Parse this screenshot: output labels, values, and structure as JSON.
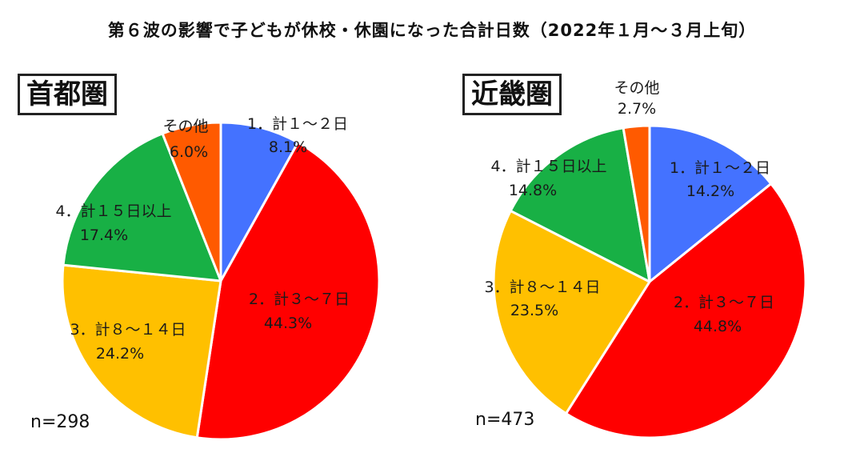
{
  "title": "第６波の影響で子どもが休校・休園になった合計日数（2022年１月〜３月上旬）",
  "colors": {
    "blue": "#4472ff",
    "red": "#ff0000",
    "yellow": "#ffc000",
    "green": "#18b045",
    "orange": "#ff5a00"
  },
  "chart_data": [
    {
      "type": "pie",
      "region": "首都圏",
      "n": "n=298",
      "slices": [
        {
          "label": "1．計１〜２日",
          "value": 8.1,
          "value_label": "8.1%",
          "color": "#4472ff"
        },
        {
          "label": "2．計３〜７日",
          "value": 44.3,
          "value_label": "44.3%",
          "color": "#ff0000"
        },
        {
          "label": "3．計８〜１４日",
          "value": 24.2,
          "value_label": "24.2%",
          "color": "#ffc000"
        },
        {
          "label": "4．計１５日以上",
          "value": 17.4,
          "value_label": "17.4%",
          "color": "#18b045"
        },
        {
          "label": "その他",
          "value": 6.0,
          "value_label": "6.0%",
          "color": "#ff5a00"
        }
      ]
    },
    {
      "type": "pie",
      "region": "近畿圏",
      "n": "n=473",
      "slices": [
        {
          "label": "1．計１〜２日",
          "value": 14.2,
          "value_label": "14.2%",
          "color": "#4472ff"
        },
        {
          "label": "2．計３〜７日",
          "value": 44.8,
          "value_label": "44.8%",
          "color": "#ff0000"
        },
        {
          "label": "3．計８〜１４日",
          "value": 23.5,
          "value_label": "23.5%",
          "color": "#ffc000"
        },
        {
          "label": "4．計１５日以上",
          "value": 14.8,
          "value_label": "14.8%",
          "color": "#18b045"
        },
        {
          "label": "その他",
          "value": 2.7,
          "value_label": "2.7%",
          "color": "#ff5a00"
        }
      ]
    }
  ]
}
